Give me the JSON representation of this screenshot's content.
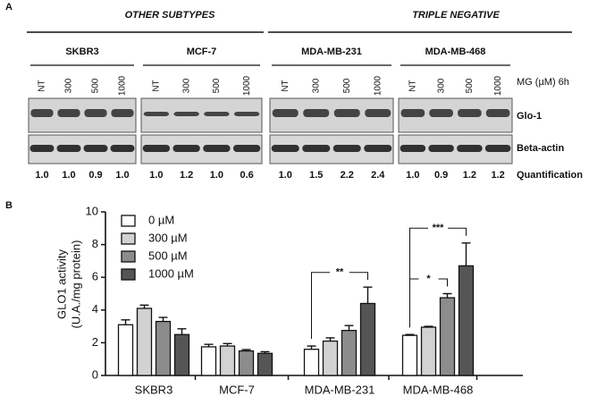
{
  "panel_a": {
    "label": "A",
    "subtypes": [
      "OTHER SUBTYPES",
      "TRIPLE NEGATIVE"
    ],
    "cell_lines": [
      {
        "name": "SKBR3",
        "lanes": [
          "NT",
          "300",
          "500",
          "1000"
        ],
        "quantification": [
          "1.0",
          "1.0",
          "0.9",
          "1.0"
        ]
      },
      {
        "name": "MCF-7",
        "lanes": [
          "NT",
          "300",
          "500",
          "1000"
        ],
        "quantification": [
          "1.0",
          "1.2",
          "1.0",
          "0.6"
        ]
      },
      {
        "name": "MDA-MB-231",
        "lanes": [
          "NT",
          "300",
          "500",
          "1000"
        ],
        "quantification": [
          "1.0",
          "1.5",
          "2.2",
          "2.4"
        ]
      },
      {
        "name": "MDA-MB-468",
        "lanes": [
          "NT",
          "300",
          "500",
          "1000"
        ],
        "quantification": [
          "1.0",
          "0.9",
          "1.2",
          "1.2"
        ]
      }
    ],
    "treatment": "MG (µM) 6h",
    "rows": [
      "Glo-1",
      "Beta-actin",
      "Quantification"
    ]
  },
  "chart_data": {
    "type": "bar",
    "panel_label": "B",
    "ylabel": [
      "GLO1 activity",
      "(U.A./mg protein)"
    ],
    "categories": [
      "SKBR3",
      "MCF-7",
      "MDA-MB-231",
      "MDA-MB-468"
    ],
    "series": [
      {
        "name": "0 µM",
        "color": "#ffffff",
        "values": [
          3.1,
          1.75,
          1.6,
          2.45
        ],
        "errors": [
          0.3,
          0.15,
          0.2,
          0.05
        ]
      },
      {
        "name": "300 µM",
        "color": "#d2d2d2",
        "values": [
          4.1,
          1.8,
          2.1,
          2.95
        ],
        "errors": [
          0.2,
          0.15,
          0.2,
          0.05
        ]
      },
      {
        "name": "500 µM",
        "color": "#8c8c8c",
        "values": [
          3.3,
          1.5,
          2.75,
          4.75
        ],
        "errors": [
          0.25,
          0.08,
          0.3,
          0.25
        ]
      },
      {
        "name": "1000 µM",
        "color": "#555555",
        "values": [
          2.5,
          1.35,
          4.4,
          6.7
        ],
        "errors": [
          0.35,
          0.1,
          1.0,
          1.4
        ]
      }
    ],
    "ylim": [
      0,
      10
    ],
    "yticks": [
      0,
      2,
      4,
      6,
      8,
      10
    ],
    "significance": [
      {
        "text": "**",
        "category": "MDA-MB-231",
        "from": "0 µM",
        "to": "1000 µM"
      },
      {
        "text": "***",
        "category": "MDA-MB-468",
        "from": "0 µM",
        "to": "1000 µM"
      },
      {
        "text": "*",
        "category": "MDA-MB-468",
        "from": "0 µM",
        "to": "500 µM"
      }
    ]
  }
}
